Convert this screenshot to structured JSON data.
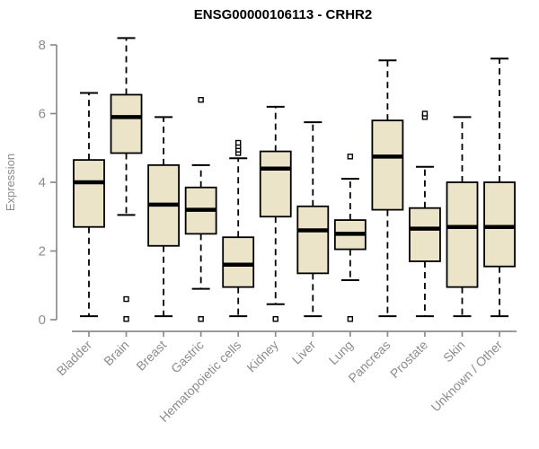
{
  "chart_data": {
    "type": "boxplot",
    "title": "ENSG00000106113 - CRHR2",
    "ylabel": "Expression",
    "xlabel": "",
    "ylim": [
      0,
      8
    ],
    "yticks": [
      0,
      2,
      4,
      6,
      8
    ],
    "grid": false,
    "legend": "none",
    "categories": [
      "Bladder",
      "Brain",
      "Breast",
      "Gastric",
      "Hematopoietic cells",
      "Kidney",
      "Liver",
      "Lung",
      "Pancreas",
      "Prostate",
      "Skin",
      "Unknown / Other"
    ],
    "series": [
      {
        "label": "Bladder",
        "whislo": 0.1,
        "q1": 2.7,
        "med": 4.0,
        "q3": 4.65,
        "whishi": 6.6,
        "outliers": []
      },
      {
        "label": "Brain",
        "whislo": 3.05,
        "q1": 4.85,
        "med": 5.9,
        "q3": 6.55,
        "whishi": 8.2,
        "outliers": [
          0.6,
          0.02
        ]
      },
      {
        "label": "Breast",
        "whislo": 0.1,
        "q1": 2.15,
        "med": 3.35,
        "q3": 4.5,
        "whishi": 5.9,
        "outliers": []
      },
      {
        "label": "Gastric",
        "whislo": 0.9,
        "q1": 2.5,
        "med": 3.2,
        "q3": 3.85,
        "whishi": 4.5,
        "outliers": [
          6.4,
          0.02
        ]
      },
      {
        "label": "Hematopoietic cells",
        "whislo": 0.1,
        "q1": 0.95,
        "med": 1.6,
        "q3": 2.4,
        "whishi": 4.7,
        "outliers": [
          4.85,
          4.95,
          5.05,
          5.15
        ]
      },
      {
        "label": "Kidney",
        "whislo": 0.45,
        "q1": 3.0,
        "med": 4.4,
        "q3": 4.9,
        "whishi": 6.2,
        "outliers": [
          0.02
        ]
      },
      {
        "label": "Liver",
        "whislo": 0.1,
        "q1": 1.35,
        "med": 2.6,
        "q3": 3.3,
        "whishi": 5.75,
        "outliers": []
      },
      {
        "label": "Lung",
        "whislo": 1.15,
        "q1": 2.05,
        "med": 2.5,
        "q3": 2.9,
        "whishi": 4.1,
        "outliers": [
          4.75,
          0.02
        ]
      },
      {
        "label": "Pancreas",
        "whislo": 0.1,
        "q1": 3.2,
        "med": 4.75,
        "q3": 5.8,
        "whishi": 7.55,
        "outliers": []
      },
      {
        "label": "Prostate",
        "whislo": 0.1,
        "q1": 1.7,
        "med": 2.65,
        "q3": 3.25,
        "whishi": 4.45,
        "outliers": [
          5.9,
          6.0
        ]
      },
      {
        "label": "Skin",
        "whislo": 0.1,
        "q1": 0.95,
        "med": 2.7,
        "q3": 4.0,
        "whishi": 5.9,
        "outliers": []
      },
      {
        "label": "Unknown / Other",
        "whislo": 0.1,
        "q1": 1.55,
        "med": 2.7,
        "q3": 4.0,
        "whishi": 7.6,
        "outliers": []
      }
    ]
  },
  "style": {
    "background": "#FFFFFF",
    "box_fill": "#EBE4C8",
    "box_stroke": "#000000",
    "median_color": "#000000",
    "outlier_fill": "#FFFFFF",
    "axis_color": "#8C8C8C",
    "title_color": "#000000"
  }
}
